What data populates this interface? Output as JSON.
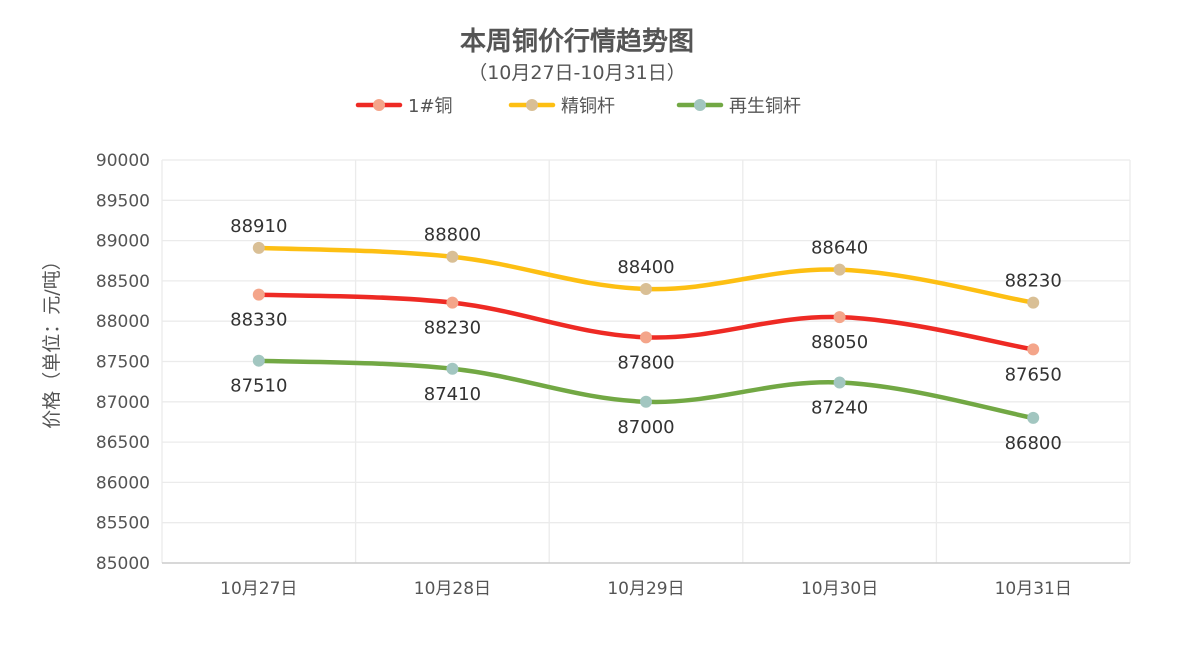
{
  "chart_data": {
    "type": "line",
    "title": "本周铜价行情趋势图",
    "subtitle": "（10月27日-10月31日）",
    "xlabel": "",
    "ylabel": "价格（单位：元/吨）",
    "categories": [
      "10月27日",
      "10月28日",
      "10月29日",
      "10月30日",
      "10月31日"
    ],
    "ylim": [
      85000,
      90000
    ],
    "ytick_step": 500,
    "yticks": [
      "85000",
      "85500",
      "86000",
      "86500",
      "87000",
      "87500",
      "88000",
      "88500",
      "89000",
      "89500",
      "90000"
    ],
    "grid": true,
    "smooth": true,
    "legend_position": "top-center",
    "series": [
      {
        "name": "1#铜",
        "values": [
          88330,
          88230,
          87800,
          88050,
          87650
        ],
        "color": "#ee2a24",
        "marker_color": "#f4a58a",
        "label_pos": [
          "below",
          "below",
          "below",
          "below",
          "below"
        ],
        "labels": [
          "88330",
          "88230",
          "87800",
          "88050",
          "87650"
        ]
      },
      {
        "name": "精铜杆",
        "values": [
          88910,
          88800,
          88400,
          88640,
          88230
        ],
        "color": "#fdbf13",
        "marker_color": "#d9bf95",
        "label_pos": [
          "above",
          "above",
          "above",
          "above",
          "above"
        ],
        "labels": [
          "88910",
          "88800",
          "88400",
          "88640",
          "88230"
        ]
      },
      {
        "name": "再生铜杆",
        "values": [
          87510,
          87410,
          87000,
          87240,
          86800
        ],
        "color": "#72a844",
        "marker_color": "#a2c6c0",
        "label_pos": [
          "below",
          "below",
          "below",
          "below",
          "below"
        ],
        "labels": [
          "87510",
          "87410",
          "87000",
          "87240",
          "86800"
        ]
      }
    ]
  }
}
